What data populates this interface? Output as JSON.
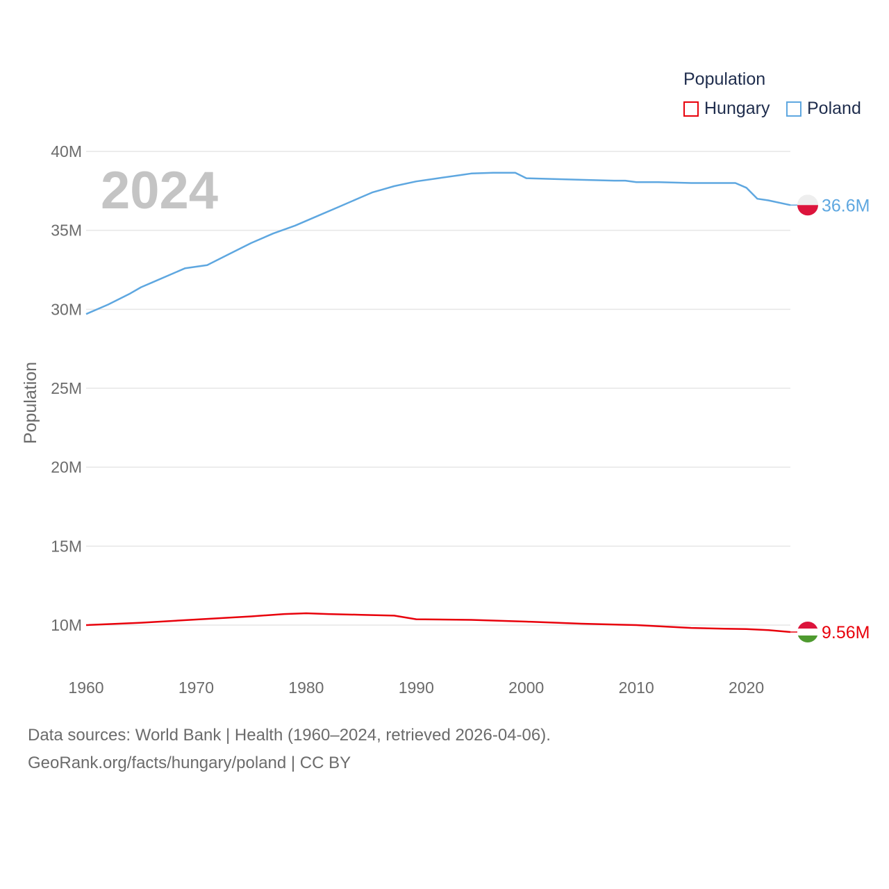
{
  "legend": {
    "title": "Population",
    "items": [
      {
        "name": "Hungary",
        "color": "#e8000b"
      },
      {
        "name": "Poland",
        "color": "#5ea7e0"
      }
    ]
  },
  "footer": {
    "line1": "Data sources: World Bank | Health (1960–2024, retrieved 2026-04-06).",
    "line2": "GeoRank.org/facts/hungary/poland | CC BY"
  },
  "chart_data": {
    "type": "line",
    "title": "",
    "xlabel": "",
    "ylabel": "Population",
    "year_label": "2024",
    "xlim": [
      1960,
      2024
    ],
    "ylim": [
      8000000,
      40000000
    ],
    "x_ticks": [
      1960,
      1970,
      1980,
      1990,
      2000,
      2010,
      2020
    ],
    "y_ticks": [
      {
        "value": 10000000,
        "label": "10M"
      },
      {
        "value": 15000000,
        "label": "15M"
      },
      {
        "value": 20000000,
        "label": "20M"
      },
      {
        "value": 25000000,
        "label": "25M"
      },
      {
        "value": 30000000,
        "label": "30M"
      },
      {
        "value": 35000000,
        "label": "35M"
      },
      {
        "value": 40000000,
        "label": "40M"
      }
    ],
    "series": [
      {
        "name": "Poland",
        "color": "#5ea7e0",
        "end_label": "36.6M",
        "flag": [
          "#eeeeee",
          "#dc143c"
        ],
        "x": [
          1960,
          1962,
          1964,
          1965,
          1966,
          1968,
          1969,
          1971,
          1973,
          1975,
          1977,
          1979,
          1981,
          1983,
          1985,
          1986,
          1987,
          1988,
          1990,
          1992,
          1994,
          1995,
          1997,
          1999,
          2000,
          2005,
          2008,
          2009,
          2010,
          2012,
          2015,
          2019,
          2020,
          2021,
          2022,
          2024
        ],
        "values": [
          29700000,
          30300000,
          31000000,
          31400000,
          31700000,
          32300000,
          32600000,
          32800000,
          33500000,
          34200000,
          34800000,
          35300000,
          35900000,
          36500000,
          37100000,
          37400000,
          37600000,
          37800000,
          38100000,
          38300000,
          38500000,
          38600000,
          38650000,
          38650000,
          38300000,
          38200000,
          38150000,
          38150000,
          38050000,
          38050000,
          38000000,
          38000000,
          37700000,
          37000000,
          36900000,
          36600000
        ]
      },
      {
        "name": "Hungary",
        "color": "#e8000b",
        "end_label": "9.56M",
        "flag": [
          "#dc143c",
          "#ffffff",
          "#4e9a2f"
        ],
        "x": [
          1960,
          1965,
          1970,
          1975,
          1978,
          1980,
          1982,
          1985,
          1988,
          1990,
          1995,
          2000,
          2005,
          2010,
          2015,
          2018,
          2020,
          2022,
          2024
        ],
        "values": [
          10000000,
          10150000,
          10350000,
          10550000,
          10700000,
          10750000,
          10700000,
          10650000,
          10600000,
          10370000,
          10330000,
          10220000,
          10090000,
          10000000,
          9820000,
          9770000,
          9750000,
          9680000,
          9560000
        ]
      }
    ]
  }
}
